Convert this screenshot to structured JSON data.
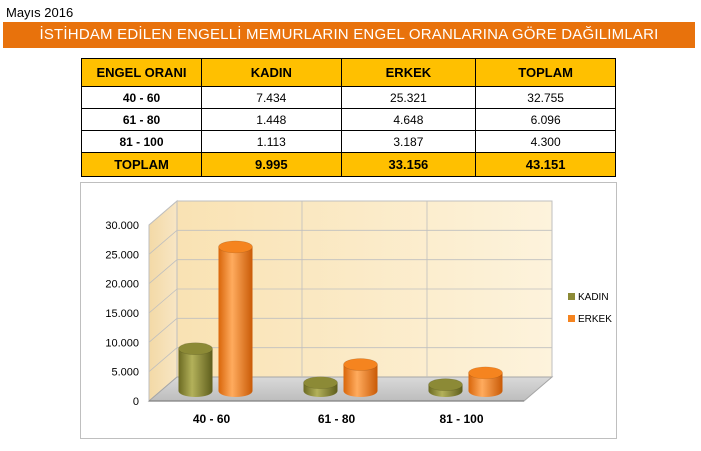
{
  "header": {
    "date": "Mayıs 2016",
    "title": "İSTİHDAM EDİLEN ENGELLİ MEMURLARIN ENGEL ORANLARINA GÖRE DAĞILIMLARI"
  },
  "table": {
    "columns": [
      "ENGEL ORANI",
      "KADIN",
      "ERKEK",
      "TOPLAM"
    ],
    "rows": [
      [
        "40 - 60",
        "7.434",
        "25.321",
        "32.755"
      ],
      [
        "61 - 80",
        "1.448",
        "4.648",
        "6.096"
      ],
      [
        "81 - 100",
        "1.113",
        "3.187",
        "4.300"
      ]
    ],
    "total": [
      "TOPLAM",
      "9.995",
      "33.156",
      "43.151"
    ]
  },
  "chart_data": {
    "type": "bar",
    "categories": [
      "40 - 60",
      "61 - 80",
      "81 - 100"
    ],
    "series": [
      {
        "name": "KADIN",
        "values": [
          7434,
          1448,
          1113
        ],
        "color": "#8c8a36"
      },
      {
        "name": "ERKEK",
        "values": [
          25321,
          4648,
          3187
        ],
        "color": "#f5841f"
      }
    ],
    "y_ticks": [
      "0",
      "5.000",
      "10.000",
      "15.000",
      "20.000",
      "25.000",
      "30.000"
    ],
    "ylim": [
      0,
      30000
    ],
    "legend_position": "right",
    "style": "3d-cylinder",
    "grid": true,
    "wall_color": "#fbe9c6"
  }
}
